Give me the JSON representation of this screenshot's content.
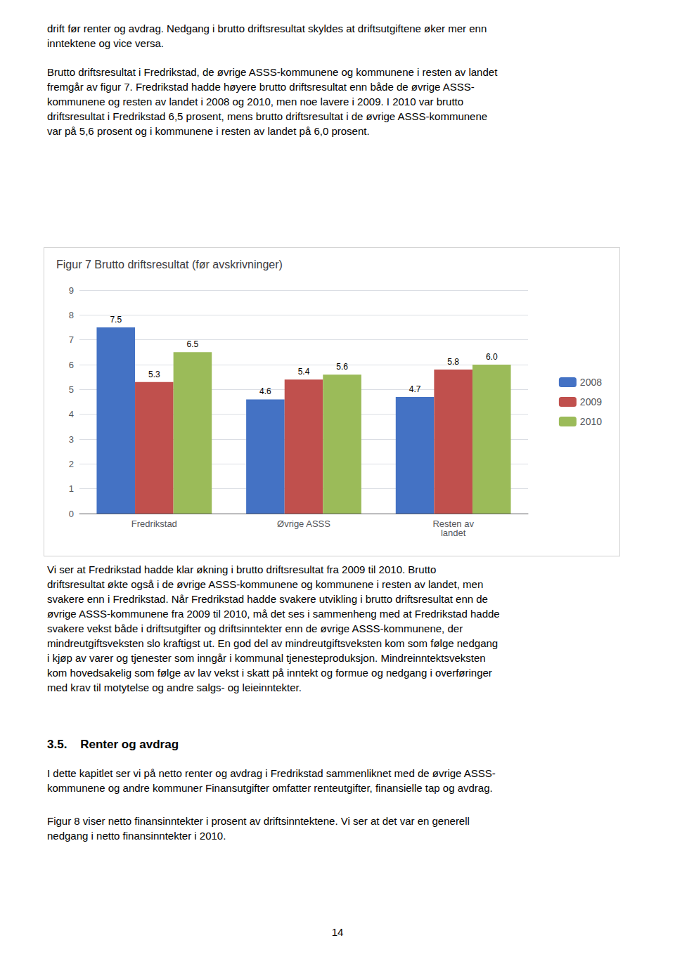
{
  "paragraphs": [
    "drift før renter og avdrag. Nedgang i brutto driftsresultat skyldes at driftsutgiftene øker mer enn\ninntektene og vice versa.",
    "Brutto driftsresultat i Fredrikstad, de øvrige ASSS-kommunene og kommunene i resten av landet\nfremgår av figur 7. Fredrikstad hadde høyere brutto driftsresultat enn både de øvrige ASSS-\nkommunene og resten av landet i 2008 og 2010, men noe lavere i 2009. I 2010 var brutto\ndriftsresultat i Fredrikstad 6,5 prosent, mens brutto driftsresultat i de øvrige ASSS-kommunene\nvar på 5,6 prosent og i kommunene i resten av landet på 6,0 prosent.",
    "Vi ser at Fredrikstad hadde klar økning i brutto driftsresultat fra 2009 til 2010. Brutto\ndriftsresultat økte også i de øvrige ASSS-kommunene og kommunene i resten av landet, men\nsvakere enn i Fredrikstad. Når Fredrikstad hadde svakere utvikling i brutto driftsresultat enn de\nøvrige ASSS-kommunene fra 2009 til 2010, må det ses i sammenheng med at Fredrikstad hadde\nsvakere vekst både i driftsutgifter og driftsinntekter enn de øvrige ASSS-kommunene, der\nmindreutgiftsveksten slo kraftigst ut. En god del av mindreutgiftsveksten kom som følge nedgang\ni kjøp av varer og tjenester som inngår i kommunal tjenesteproduksjon. Mindreinntektsveksten\nkom hovedsakelig som følge av lav vekst i skatt på inntekt og formue og nedgang i overføringer\nmed krav til motytelse og andre salgs- og leieinntekter.",
    "I dette kapitlet ser vi på netto renter og avdrag i Fredrikstad sammenliknet med de øvrige ASSS-\nkommunene og andre kommuner Finansutgifter omfatter renteutgifter, finansielle tap og avdrag.",
    "Figur 8 viser netto finansinntekter i prosent av driftsinntektene. Vi ser at det var en generell\nnedgang i netto finansinntekter i 2010."
  ],
  "heading": "3.5.    Renter og avdrag",
  "page_number": "14",
  "chart_data": {
    "type": "bar",
    "title": "Figur 7 Brutto driftsresultat (før avskrivninger)",
    "categories": [
      "Fredrikstad",
      "Øvrige ASSS",
      "Resten av\nlandet"
    ],
    "series": [
      {
        "name": "2008",
        "color": "#4472C4",
        "values": [
          7.5,
          4.6,
          4.7
        ],
        "value_labels": [
          "7.5",
          "4.6",
          "4.7"
        ]
      },
      {
        "name": "2009",
        "color": "#C0504D",
        "values": [
          5.3,
          5.4,
          5.8
        ],
        "value_labels": [
          "5.3",
          "5.4",
          "5.8"
        ]
      },
      {
        "name": "2010",
        "color": "#9BBB59",
        "values": [
          6.5,
          5.6,
          6.0
        ],
        "value_labels": [
          "6.5",
          "5.6",
          "6.0"
        ]
      }
    ],
    "ylim": [
      0,
      9
    ],
    "yticks": [
      0,
      1,
      2,
      3,
      4,
      5,
      6,
      7,
      8,
      9
    ],
    "grid": true,
    "legend": "right",
    "data_labels": true
  }
}
